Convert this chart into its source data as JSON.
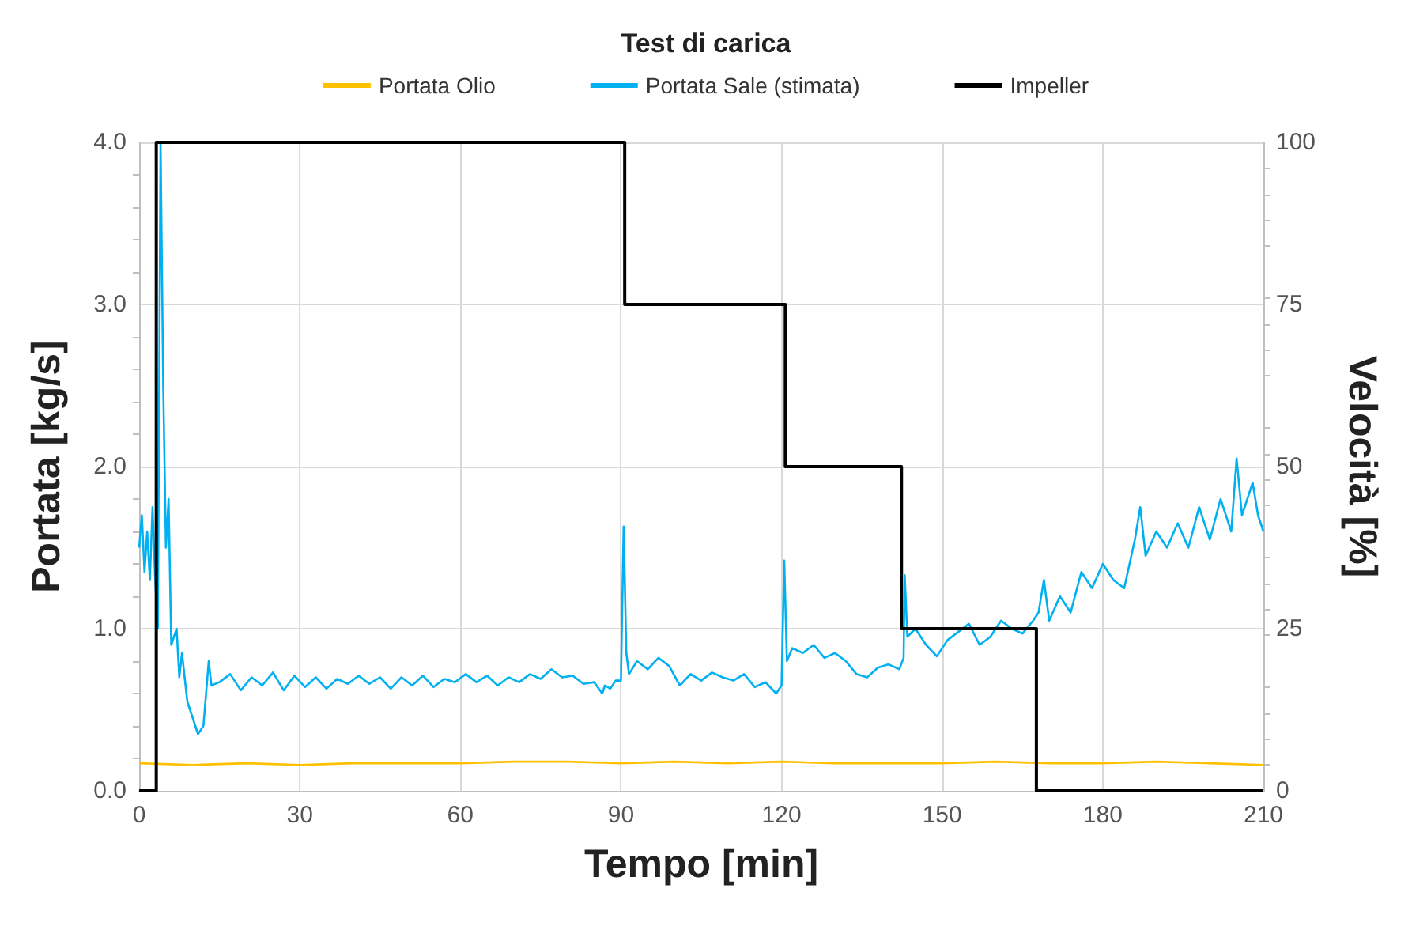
{
  "chart_data": {
    "type": "line",
    "title": "Test di carica",
    "xlabel": "Tempo [min]",
    "ylabel": "Portata [kg/s]",
    "y2label": "Velocità [%]",
    "xlim": [
      0,
      210
    ],
    "xticks": [
      0,
      30,
      60,
      90,
      120,
      150,
      180,
      210
    ],
    "ylim": [
      0,
      4
    ],
    "yticks": [
      {
        "value": 0,
        "label": "0.0"
      },
      {
        "value": 1,
        "label": "1.0"
      },
      {
        "value": 2,
        "label": "2.0"
      },
      {
        "value": 3,
        "label": "3.0"
      },
      {
        "value": 4,
        "label": "4.0"
      }
    ],
    "y2lim": [
      0,
      100
    ],
    "y2ticks": [
      0,
      25,
      50,
      75,
      100
    ],
    "grid": true,
    "legend": "top",
    "marker": "none",
    "series": [
      {
        "name": "Portata Olio",
        "color": "#ffc000",
        "x": [
          0,
          10,
          20,
          30,
          40,
          50,
          60,
          70,
          80,
          90,
          100,
          110,
          120,
          130,
          140,
          150,
          160,
          170,
          180,
          190,
          200,
          210
        ],
        "values": [
          0.17,
          0.16,
          0.17,
          0.16,
          0.17,
          0.17,
          0.17,
          0.18,
          0.18,
          0.17,
          0.18,
          0.17,
          0.18,
          0.17,
          0.17,
          0.17,
          0.18,
          0.17,
          0.17,
          0.18,
          0.17,
          0.16
        ]
      },
      {
        "name": "Portata Sale (stimata)",
        "color": "#00b0f0",
        "x": [
          0,
          0.5,
          1,
          1.5,
          2,
          2.5,
          3,
          3.5,
          4,
          4.5,
          5,
          5.5,
          6,
          7,
          7.5,
          8,
          9,
          10,
          11,
          12,
          12.5,
          13,
          13.5,
          15,
          17,
          19,
          21,
          23,
          25,
          27,
          29,
          31,
          33,
          35,
          37,
          39,
          41,
          43,
          45,
          47,
          49,
          51,
          53,
          55,
          57,
          59,
          61,
          63,
          65,
          67,
          69,
          71,
          73,
          75,
          77,
          79,
          81,
          83,
          85,
          86.5,
          87,
          88,
          89,
          90,
          90.5,
          91,
          91.5,
          93,
          95,
          97,
          99,
          101,
          103,
          105,
          107,
          109,
          111,
          113,
          115,
          117,
          119,
          120,
          120.5,
          121,
          122,
          124,
          126,
          128,
          130,
          132,
          134,
          136,
          138,
          140,
          142,
          142.8,
          143,
          143.5,
          145,
          147,
          149,
          151,
          153,
          155,
          157,
          159,
          161,
          163,
          165,
          167,
          168,
          169,
          170,
          172,
          174,
          176,
          178,
          180,
          182,
          184,
          186,
          187,
          188,
          190,
          192,
          194,
          196,
          198,
          200,
          202,
          204,
          205,
          206,
          208,
          209,
          210
        ],
        "values": [
          1.5,
          1.7,
          1.35,
          1.6,
          1.3,
          1.75,
          1.3,
          1.0,
          4.0,
          2.5,
          1.5,
          1.8,
          0.9,
          1.0,
          0.7,
          0.85,
          0.55,
          0.45,
          0.35,
          0.4,
          0.6,
          0.8,
          0.65,
          0.67,
          0.72,
          0.62,
          0.7,
          0.65,
          0.73,
          0.62,
          0.71,
          0.64,
          0.7,
          0.63,
          0.69,
          0.66,
          0.71,
          0.66,
          0.7,
          0.63,
          0.7,
          0.65,
          0.71,
          0.64,
          0.69,
          0.67,
          0.72,
          0.67,
          0.71,
          0.65,
          0.7,
          0.67,
          0.72,
          0.69,
          0.75,
          0.7,
          0.71,
          0.66,
          0.67,
          0.6,
          0.65,
          0.63,
          0.68,
          0.68,
          1.63,
          0.85,
          0.72,
          0.8,
          0.75,
          0.82,
          0.77,
          0.65,
          0.72,
          0.68,
          0.73,
          0.7,
          0.68,
          0.72,
          0.64,
          0.67,
          0.6,
          0.65,
          1.42,
          0.8,
          0.88,
          0.85,
          0.9,
          0.82,
          0.85,
          0.8,
          0.72,
          0.7,
          0.76,
          0.78,
          0.75,
          0.82,
          1.33,
          0.95,
          1.0,
          0.9,
          0.83,
          0.93,
          0.98,
          1.03,
          0.9,
          0.95,
          1.05,
          1.0,
          0.97,
          1.05,
          1.1,
          1.3,
          1.05,
          1.2,
          1.1,
          1.35,
          1.25,
          1.4,
          1.3,
          1.25,
          1.55,
          1.75,
          1.45,
          1.6,
          1.5,
          1.65,
          1.5,
          1.75,
          1.55,
          1.8,
          1.6,
          2.05,
          1.7,
          1.9,
          1.7,
          1.6
        ]
      },
      {
        "name": "Impeller",
        "type": "step",
        "axis": "y2",
        "color": "#000000",
        "x": [
          0,
          3.2,
          90.7,
          120.7,
          142.4,
          167.6,
          210
        ],
        "values": [
          0,
          100,
          75,
          50,
          25,
          0,
          0
        ]
      }
    ]
  }
}
